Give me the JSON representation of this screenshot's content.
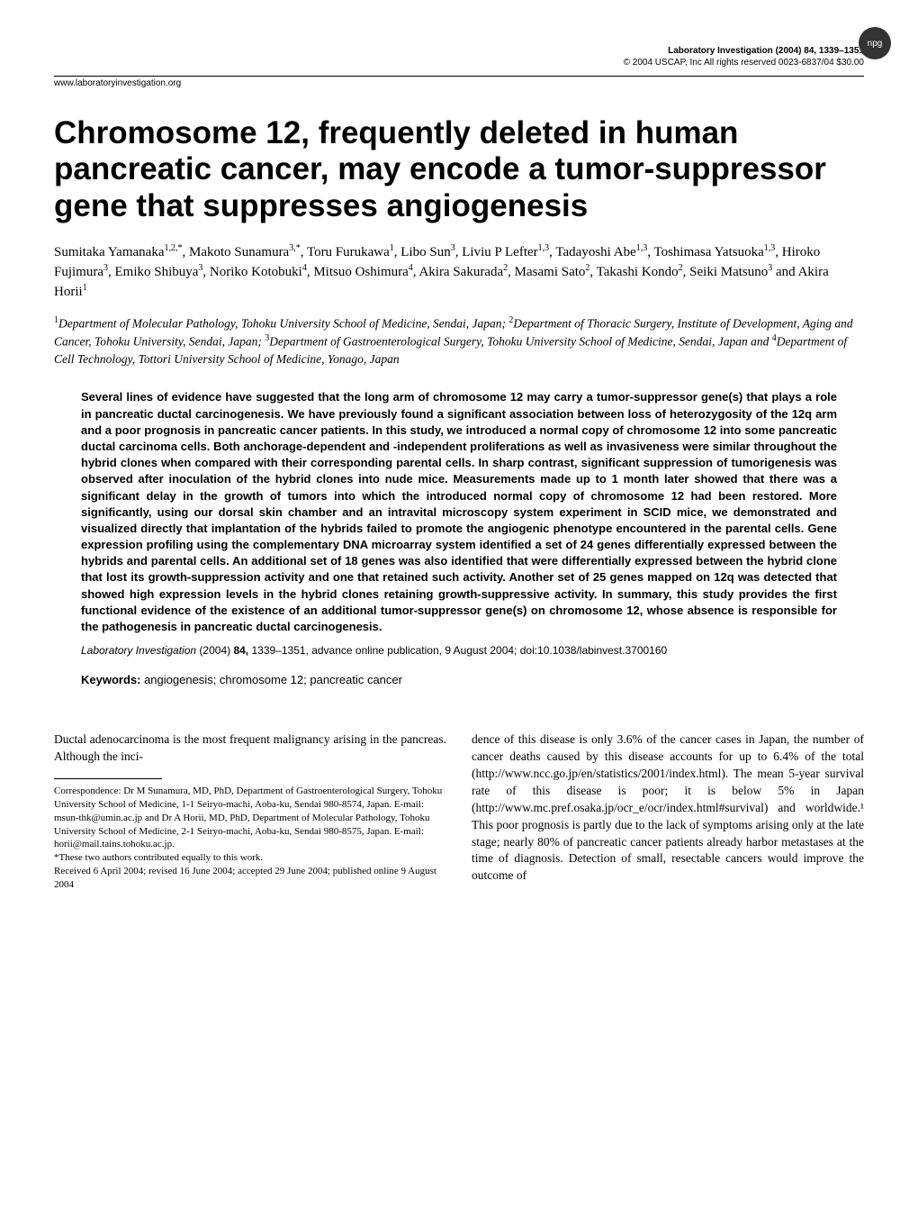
{
  "header": {
    "journal_line": "Laboratory Investigation (2004) 84, 1339–1351",
    "copyright_line": "© 2004 USCAP, Inc   All rights reserved 0023-6837/04 $30.00",
    "website": "www.laboratoryinvestigation.org",
    "badge": "npg"
  },
  "title": "Chromosome 12, frequently deleted in human pancreatic cancer, may encode a tumor-suppressor gene that suppresses angiogenesis",
  "authors_html": "Sumitaka Yamanaka<sup>1,2,*</sup>, Makoto Sunamura<sup>3,*</sup>, Toru Furukawa<sup>1</sup>, Libo Sun<sup>3</sup>, Liviu P Lefter<sup>1,3</sup>, Tadayoshi Abe<sup>1,3</sup>, Toshimasa Yatsuoka<sup>1,3</sup>, Hiroko Fujimura<sup>3</sup>, Emiko Shibuya<sup>3</sup>, Noriko Kotobuki<sup>4</sup>, Mitsuo Oshimura<sup>4</sup>, Akira Sakurada<sup>2</sup>, Masami Sato<sup>2</sup>, Takashi Kondo<sup>2</sup>, Seiki Matsuno<sup>3</sup> and Akira Horii<sup>1</sup>",
  "affiliations_html": "<sup>1</sup>Department of Molecular Pathology, Tohoku University School of Medicine, Sendai, Japan; <sup>2</sup>Department of Thoracic Surgery, Institute of Development, Aging and Cancer, Tohoku University, Sendai, Japan; <sup>3</sup>Department of Gastroenterological Surgery, Tohoku University School of Medicine, Sendai, Japan and <sup>4</sup>Department of Cell Technology, Tottori University School of Medicine, Yonago, Japan",
  "abstract": "Several lines of evidence have suggested that the long arm of chromosome 12 may carry a tumor-suppressor gene(s) that plays a role in pancreatic ductal carcinogenesis. We have previously found a significant association between loss of heterozygosity of the 12q arm and a poor prognosis in pancreatic cancer patients. In this study, we introduced a normal copy of chromosome 12 into some pancreatic ductal carcinoma cells. Both anchorage-dependent and -independent proliferations as well as invasiveness were similar throughout the hybrid clones when compared with their corresponding parental cells. In sharp contrast, significant suppression of tumorigenesis was observed after inoculation of the hybrid clones into nude mice. Measurements made up to 1 month later showed that there was a significant delay in the growth of tumors into which the introduced normal copy of chromosome 12 had been restored. More significantly, using our dorsal skin chamber and an intravital microscopy system experiment in SCID mice, we demonstrated and visualized directly that implantation of the hybrids failed to promote the angiogenic phenotype encountered in the parental cells. Gene expression profiling using the complementary DNA microarray system identified a set of 24 genes differentially expressed between the hybrids and parental cells. An additional set of 18 genes was also identified that were differentially expressed between the hybrid clone that lost its growth-suppression activity and one that retained such activity. Another set of 25 genes mapped on 12q was detected that showed high expression levels in the hybrid clones retaining growth-suppressive activity. In summary, this study provides the first functional evidence of the existence of an additional tumor-suppressor gene(s) on chromosome 12, whose absence is responsible for the pathogenesis in pancreatic ductal carcinogenesis.",
  "citation": {
    "journal": "Laboratory Investigation",
    "rest": " (2004) ",
    "vol": "84,",
    "pages": " 1339–1351, advance online publication, 9 August 2004; doi:10.1038/labinvest.3700160"
  },
  "keywords": {
    "label": "Keywords:",
    "text": " angiogenesis; chromosome 12; pancreatic cancer"
  },
  "body": {
    "left_intro": "Ductal adenocarcinoma is the most frequent malignancy arising in the pancreas. Although the inci-",
    "right_para": "dence of this disease is only 3.6% of the cancer cases in Japan, the number of cancer deaths caused by this disease accounts for up to 6.4% of the total (http://www.ncc.go.jp/en/statistics/2001/index.html). The mean 5-year survival rate of this disease is poor; it is below 5% in Japan (http://www.mc.pref.osaka.jp/ocr_e/ocr/index.html#survival) and worldwide.¹ This poor prognosis is partly due to the lack of symptoms arising only at the late stage; nearly 80% of pancreatic cancer patients already harbor metastases at the time of diagnosis. Detection of small, resectable cancers would improve the outcome of"
  },
  "footnotes": {
    "correspondence": "Correspondence: Dr M Sunamura, MD, PhD, Department of Gastroenterological Surgery, Tohoku University School of Medicine, 1-1 Seiryo-machi, Aoba-ku, Sendai 980-8574, Japan. E-mail: msun-thk@umin.ac.jp and Dr A Horii, MD, PhD, Department of Molecular Pathology, Tohoku University School of Medicine, 2-1 Seiryo-machi, Aoba-ku, Sendai 980-8575, Japan. E-mail: horii@mail.tains.tohoku.ac.jp.",
    "equal": "*These two authors contributed equally to this work.",
    "received": "Received 6 April 2004; revised 16 June 2004; accepted 29 June 2004; published online 9 August 2004"
  }
}
